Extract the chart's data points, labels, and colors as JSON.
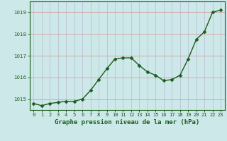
{
  "x": [
    0,
    1,
    2,
    3,
    4,
    5,
    6,
    7,
    8,
    9,
    10,
    11,
    12,
    13,
    14,
    15,
    16,
    17,
    18,
    19,
    20,
    21,
    22,
    23
  ],
  "y": [
    1014.8,
    1014.7,
    1014.8,
    1014.85,
    1014.9,
    1014.9,
    1015.0,
    1015.4,
    1015.9,
    1016.4,
    1016.85,
    1016.9,
    1016.9,
    1016.55,
    1016.25,
    1016.1,
    1015.85,
    1015.9,
    1016.1,
    1016.85,
    1017.75,
    1018.1,
    1019.0,
    1019.1
  ],
  "line_color": "#1a5c1a",
  "marker": "D",
  "marker_size": 2.5,
  "line_width": 1.0,
  "bg_color": "#cce8e8",
  "hgrid_color": "#d4a0a0",
  "vgrid_color": "#c0c0d8",
  "ylim": [
    1014.5,
    1019.5
  ],
  "yticks": [
    1015,
    1016,
    1017,
    1018,
    1019
  ],
  "xticks": [
    0,
    1,
    2,
    3,
    4,
    5,
    6,
    7,
    8,
    9,
    10,
    11,
    12,
    13,
    14,
    15,
    16,
    17,
    18,
    19,
    20,
    21,
    22,
    23
  ],
  "xlabel": "Graphe pression niveau de la mer (hPa)",
  "xlabel_color": "#1a5c1a",
  "tick_label_color": "#1a5c1a",
  "label_fontsize": 6.5,
  "tick_fontsize": 5.0,
  "border_color": "#1a5c1a"
}
